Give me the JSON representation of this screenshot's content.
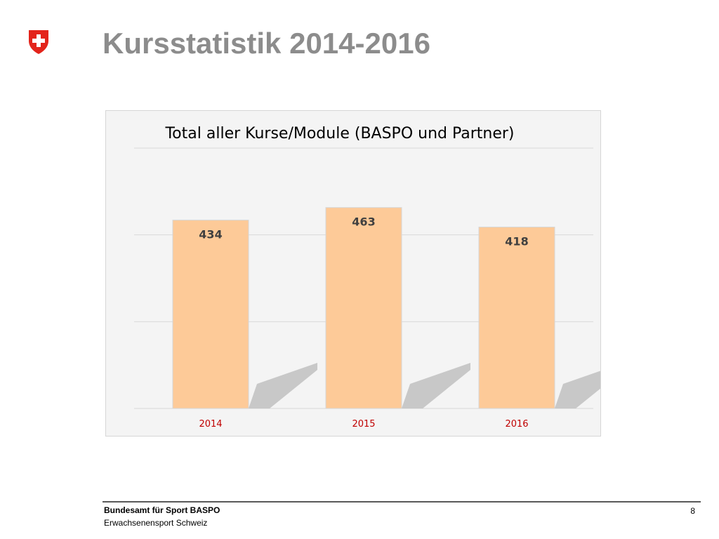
{
  "slide": {
    "title": "Kursstatistik 2014-2016",
    "page_number": "8"
  },
  "footer": {
    "organization": "Bundesamt für Sport BASPO",
    "department": "Erwachsenensport Schweiz"
  },
  "logo": {
    "icon": "swiss-cross-shield-icon",
    "shield_color": "#e3241b",
    "cross_color": "#ffffff"
  },
  "chart_data": {
    "type": "bar",
    "title": "Total aller Kurse/Module (BASPO und Partner)",
    "categories": [
      "2014",
      "2015",
      "2016"
    ],
    "values": [
      434,
      463,
      418
    ],
    "xlabel": "",
    "ylabel": "",
    "ylim": [
      0,
      600
    ],
    "grid": true,
    "legend": "none",
    "bar_color": "#fdca98",
    "tick_label_color": "#c00000",
    "data_labels": true
  }
}
